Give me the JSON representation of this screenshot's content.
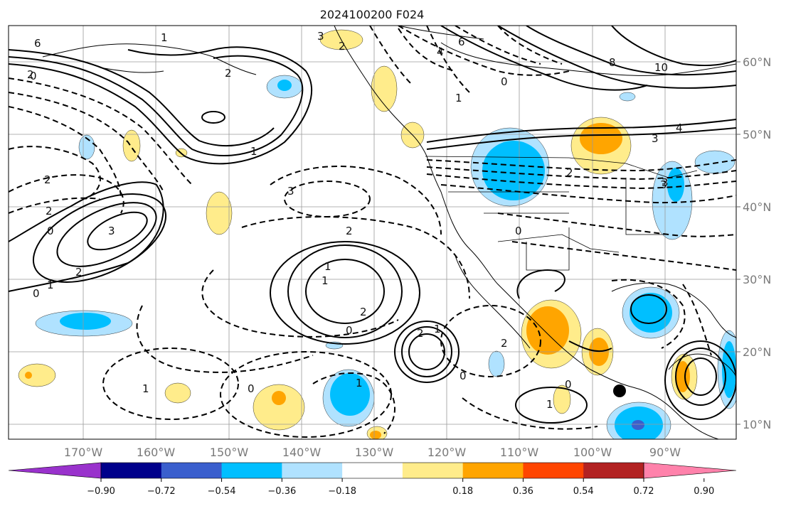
{
  "title": "2024100200 F024",
  "latitude_labels": [
    "60°N",
    "50°N",
    "40°N",
    "30°N",
    "20°N",
    "10°N"
  ],
  "longitude_labels": [
    "170°W",
    "160°W",
    "150°W",
    "140°W",
    "130°W",
    "120°W",
    "110°W",
    "100°W",
    "90°W"
  ],
  "colorbar": {
    "tick_labels": [
      "−0.90",
      "−0.72",
      "−0.54",
      "−0.36",
      "−0.18",
      "0.18",
      "0.36",
      "0.54",
      "0.72",
      "0.90"
    ],
    "bin_colors": [
      "#9932cc",
      "#00008b",
      "#3a5fcd",
      "#00bfff",
      "#b0e2ff",
      "#ffffff",
      "#ffec8b",
      "#ffa500",
      "#ff4500",
      "#b22222",
      "#ff82ab"
    ]
  },
  "contour_labels": [
    "6",
    "1",
    "3",
    "2",
    "4",
    "6",
    "10",
    "8",
    "0",
    "4",
    "3",
    "2",
    "3",
    "1",
    "2",
    "0",
    "1",
    "2",
    "2",
    "0",
    "2",
    "3",
    "2",
    "1",
    "0",
    "1",
    "0",
    "1",
    "2",
    "0",
    "3",
    "2",
    "0",
    "2",
    "1",
    "0",
    "1",
    "1",
    "0",
    "1",
    "3",
    "2"
  ],
  "colors": {
    "land_line": "#000000",
    "grid": "#9a9a9a",
    "positive_fill": "#ffec8b",
    "negative_fill": "#00bfff"
  }
}
